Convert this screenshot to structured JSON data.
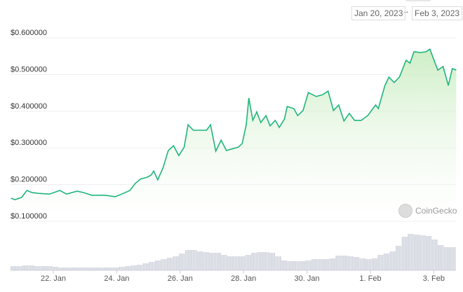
{
  "range": {
    "from": "Jan 20, 2023",
    "arrow": "→",
    "to": "Feb 3, 2023"
  },
  "brand": "CoinGecko",
  "chart_data": {
    "type": "area",
    "title": "",
    "ylim": [
      0.1,
      0.6
    ],
    "yticks": [
      "$0.600000",
      "$0.500000",
      "$0.400000",
      "$0.300000",
      "$0.200000",
      "$0.100000"
    ],
    "ytick_values": [
      0.6,
      0.5,
      0.4,
      0.3,
      0.2,
      0.1
    ],
    "xticks": [
      "22. Jan",
      "24. Jan",
      "26. Jan",
      "28. Jan",
      "30. Jan",
      "1. Feb",
      "3. Feb"
    ],
    "xtick_dates": [
      "2023-01-22T00:00",
      "2023-01-24T00:00",
      "2023-01-26T00:00",
      "2023-01-28T00:00",
      "2023-01-30T00:00",
      "2023-02-01T00:00",
      "2023-02-03T00:00"
    ],
    "grid": true,
    "line_color": "#1fb57c",
    "fill_color": "#d9f2d0",
    "volume_color": "#cfd2dc",
    "price": [
      [
        "2023-01-20T16:00",
        0.163
      ],
      [
        "2023-01-20T19:00",
        0.159
      ],
      [
        "2023-01-21T00:00",
        0.165
      ],
      [
        "2023-01-21T04:00",
        0.184
      ],
      [
        "2023-01-21T08:00",
        0.178
      ],
      [
        "2023-01-21T13:00",
        0.176
      ],
      [
        "2023-01-21T21:00",
        0.174
      ],
      [
        "2023-01-22T05:00",
        0.184
      ],
      [
        "2023-01-22T10:00",
        0.174
      ],
      [
        "2023-01-22T18:00",
        0.182
      ],
      [
        "2023-01-22T23:00",
        0.178
      ],
      [
        "2023-01-23T05:00",
        0.171
      ],
      [
        "2023-01-23T15:00",
        0.171
      ],
      [
        "2023-01-23T23:00",
        0.167
      ],
      [
        "2023-01-24T05:00",
        0.176
      ],
      [
        "2023-01-24T10:00",
        0.184
      ],
      [
        "2023-01-24T14:00",
        0.203
      ],
      [
        "2023-01-24T18:00",
        0.215
      ],
      [
        "2023-01-24T23:00",
        0.22
      ],
      [
        "2023-01-25T02:00",
        0.226
      ],
      [
        "2023-01-25T04:00",
        0.237
      ],
      [
        "2023-01-25T07:00",
        0.213
      ],
      [
        "2023-01-25T11:00",
        0.245
      ],
      [
        "2023-01-25T15:00",
        0.293
      ],
      [
        "2023-01-25T19:00",
        0.306
      ],
      [
        "2023-01-25T23:00",
        0.279
      ],
      [
        "2023-01-26T03:00",
        0.302
      ],
      [
        "2023-01-26T06:00",
        0.363
      ],
      [
        "2023-01-26T10:00",
        0.348
      ],
      [
        "2023-01-26T15:00",
        0.348
      ],
      [
        "2023-01-26T20:00",
        0.348
      ],
      [
        "2023-01-26T23:00",
        0.363
      ],
      [
        "2023-01-27T03:00",
        0.291
      ],
      [
        "2023-01-27T07:00",
        0.321
      ],
      [
        "2023-01-27T11:00",
        0.293
      ],
      [
        "2023-01-27T15:00",
        0.297
      ],
      [
        "2023-01-27T20:00",
        0.302
      ],
      [
        "2023-01-27T23:00",
        0.312
      ],
      [
        "2023-01-28T02:00",
        0.363
      ],
      [
        "2023-01-28T04:00",
        0.436
      ],
      [
        "2023-01-28T07:00",
        0.375
      ],
      [
        "2023-01-28T10:00",
        0.398
      ],
      [
        "2023-01-28T13:00",
        0.369
      ],
      [
        "2023-01-28T17:00",
        0.388
      ],
      [
        "2023-01-28T20:00",
        0.36
      ],
      [
        "2023-01-29T00:00",
        0.375
      ],
      [
        "2023-01-29T03:00",
        0.356
      ],
      [
        "2023-01-29T07:00",
        0.379
      ],
      [
        "2023-01-29T09:00",
        0.413
      ],
      [
        "2023-01-29T14:00",
        0.407
      ],
      [
        "2023-01-29T17:00",
        0.388
      ],
      [
        "2023-01-29T21:00",
        0.402
      ],
      [
        "2023-01-30T01:00",
        0.451
      ],
      [
        "2023-01-30T07:00",
        0.44
      ],
      [
        "2023-01-30T12:00",
        0.445
      ],
      [
        "2023-01-30T16:00",
        0.455
      ],
      [
        "2023-01-30T20:00",
        0.402
      ],
      [
        "2023-01-31T00:00",
        0.417
      ],
      [
        "2023-01-31T04:00",
        0.373
      ],
      [
        "2023-01-31T08:00",
        0.394
      ],
      [
        "2023-01-31T12:00",
        0.375
      ],
      [
        "2023-01-31T17:00",
        0.375
      ],
      [
        "2023-01-31T22:00",
        0.388
      ],
      [
        "2023-02-01T04:00",
        0.417
      ],
      [
        "2023-02-01T06:00",
        0.407
      ],
      [
        "2023-02-01T11:00",
        0.47
      ],
      [
        "2023-02-01T14:00",
        0.493
      ],
      [
        "2023-02-01T18:00",
        0.478
      ],
      [
        "2023-02-01T22:00",
        0.493
      ],
      [
        "2023-02-02T03:00",
        0.539
      ],
      [
        "2023-02-02T06:00",
        0.531
      ],
      [
        "2023-02-02T09:00",
        0.562
      ],
      [
        "2023-02-02T14:00",
        0.56
      ],
      [
        "2023-02-02T18:00",
        0.562
      ],
      [
        "2023-02-02T21:00",
        0.569
      ],
      [
        "2023-02-03T01:00",
        0.531
      ],
      [
        "2023-02-03T03:00",
        0.512
      ],
      [
        "2023-02-03T07:00",
        0.522
      ],
      [
        "2023-02-03T11:00",
        0.47
      ],
      [
        "2023-02-03T14:00",
        0.516
      ],
      [
        "2023-02-03T17:00",
        0.512
      ]
    ],
    "volume_relative": [
      6,
      6,
      7,
      7,
      6,
      6,
      6,
      5,
      4,
      4,
      4,
      4,
      4,
      4,
      4,
      4,
      4,
      4,
      5,
      6,
      7,
      8,
      10,
      12,
      14,
      16,
      18,
      20,
      24,
      29,
      29,
      27,
      26,
      25,
      25,
      22,
      20,
      20,
      20,
      22,
      25,
      26,
      26,
      25,
      20,
      14,
      13,
      13,
      13,
      14,
      16,
      16,
      16,
      17,
      21,
      21,
      20,
      19,
      17,
      16,
      17,
      22,
      24,
      27,
      35,
      48,
      52,
      51,
      50,
      49,
      44,
      36,
      33,
      33
    ]
  }
}
